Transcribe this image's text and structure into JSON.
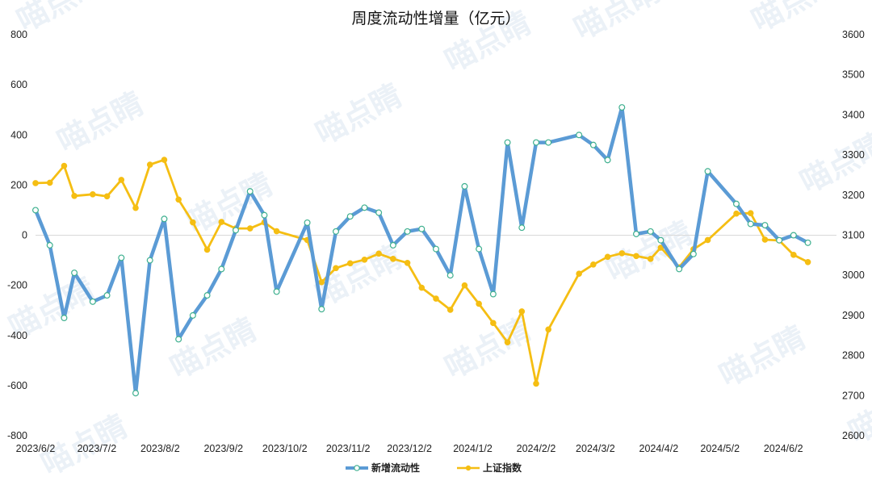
{
  "chart_data": {
    "type": "line",
    "title": "周度流动性增量（亿元）",
    "watermark": "喵点睛",
    "x_tick_labels": [
      "2023/6/2",
      "2023/7/2",
      "2023/8/2",
      "2023/9/2",
      "2023/10/2",
      "2023/11/2",
      "2023/12/2",
      "2024/1/2",
      "2024/2/2",
      "2024/3/2",
      "2024/4/2",
      "2024/5/2",
      "2024/6/2"
    ],
    "y_left": {
      "min": -800,
      "max": 800,
      "ticks": [
        "800",
        "600",
        "400",
        "200",
        "0",
        "-200",
        "-400",
        "-600",
        "-800"
      ]
    },
    "y_right": {
      "min": 2600,
      "max": 3600,
      "ticks": [
        "3600",
        "3500",
        "3400",
        "3300",
        "3200",
        "3100",
        "3000",
        "2900",
        "2800",
        "2700",
        "2600"
      ]
    },
    "x_range": [
      "2023-06-02",
      "2024-06-28"
    ],
    "grid": "horizontal zero line only",
    "legend_position": "bottom",
    "series": [
      {
        "name": "新增流动性",
        "axis": "left",
        "color": "#5b9bd5",
        "marker": "hollow-circle",
        "points": [
          [
            "2023-06-02",
            100
          ],
          [
            "2023-06-09",
            -40
          ],
          [
            "2023-06-16",
            -330
          ],
          [
            "2023-06-21",
            -150
          ],
          [
            "2023-06-30",
            -265
          ],
          [
            "2023-07-07",
            -240
          ],
          [
            "2023-07-14",
            -90
          ],
          [
            "2023-07-21",
            -630
          ],
          [
            "2023-07-28",
            -100
          ],
          [
            "2023-08-04",
            65
          ],
          [
            "2023-08-11",
            -415
          ],
          [
            "2023-08-18",
            -320
          ],
          [
            "2023-08-25",
            -240
          ],
          [
            "2023-09-01",
            -135
          ],
          [
            "2023-09-08",
            20
          ],
          [
            "2023-09-15",
            175
          ],
          [
            "2023-09-22",
            80
          ],
          [
            "2023-09-28",
            -225
          ],
          [
            "2023-10-13",
            50
          ],
          [
            "2023-10-20",
            -295
          ],
          [
            "2023-10-27",
            15
          ],
          [
            "2023-11-03",
            75
          ],
          [
            "2023-11-10",
            110
          ],
          [
            "2023-11-17",
            90
          ],
          [
            "2023-11-24",
            -40
          ],
          [
            "2023-12-01",
            15
          ],
          [
            "2023-12-08",
            25
          ],
          [
            "2023-12-15",
            -55
          ],
          [
            "2023-12-22",
            -160
          ],
          [
            "2023-12-29",
            195
          ],
          [
            "2024-01-05",
            -55
          ],
          [
            "2024-01-12",
            -235
          ],
          [
            "2024-01-19",
            370
          ],
          [
            "2024-01-26",
            30
          ],
          [
            "2024-02-02",
            370
          ],
          [
            "2024-02-08",
            370
          ],
          [
            "2024-02-23",
            400
          ],
          [
            "2024-03-01",
            360
          ],
          [
            "2024-03-08",
            300
          ],
          [
            "2024-03-15",
            510
          ],
          [
            "2024-03-22",
            5
          ],
          [
            "2024-03-29",
            15
          ],
          [
            "2024-04-03",
            -20
          ],
          [
            "2024-04-12",
            -135
          ],
          [
            "2024-04-19",
            -75
          ],
          [
            "2024-04-26",
            255
          ],
          [
            "2024-05-10",
            125
          ],
          [
            "2024-05-17",
            45
          ],
          [
            "2024-05-24",
            40
          ],
          [
            "2024-05-31",
            -20
          ],
          [
            "2024-06-07",
            0
          ],
          [
            "2024-06-14",
            -30
          ]
        ]
      },
      {
        "name": "上证指数",
        "axis": "right",
        "color": "#f5be13",
        "marker": "filled-circle",
        "points": [
          [
            "2023-06-02",
            3230
          ],
          [
            "2023-06-09",
            3231
          ],
          [
            "2023-06-16",
            3273
          ],
          [
            "2023-06-21",
            3198
          ],
          [
            "2023-06-30",
            3202
          ],
          [
            "2023-07-07",
            3197
          ],
          [
            "2023-07-14",
            3238
          ],
          [
            "2023-07-21",
            3168
          ],
          [
            "2023-07-28",
            3276
          ],
          [
            "2023-08-04",
            3288
          ],
          [
            "2023-08-11",
            3189
          ],
          [
            "2023-08-18",
            3132
          ],
          [
            "2023-08-25",
            3064
          ],
          [
            "2023-09-01",
            3133
          ],
          [
            "2023-09-08",
            3117
          ],
          [
            "2023-09-15",
            3117
          ],
          [
            "2023-09-22",
            3132
          ],
          [
            "2023-09-28",
            3110
          ],
          [
            "2023-10-13",
            3088
          ],
          [
            "2023-10-20",
            2983
          ],
          [
            "2023-10-27",
            3018
          ],
          [
            "2023-11-03",
            3030
          ],
          [
            "2023-11-10",
            3039
          ],
          [
            "2023-11-17",
            3054
          ],
          [
            "2023-11-24",
            3041
          ],
          [
            "2023-12-01",
            3031
          ],
          [
            "2023-12-08",
            2969
          ],
          [
            "2023-12-15",
            2942
          ],
          [
            "2023-12-22",
            2914
          ],
          [
            "2023-12-29",
            2975
          ],
          [
            "2024-01-05",
            2929
          ],
          [
            "2024-01-12",
            2881
          ],
          [
            "2024-01-19",
            2833
          ],
          [
            "2024-01-26",
            2910
          ],
          [
            "2024-02-02",
            2730
          ],
          [
            "2024-02-08",
            2865
          ],
          [
            "2024-02-23",
            3004
          ],
          [
            "2024-03-01",
            3027
          ],
          [
            "2024-03-08",
            3046
          ],
          [
            "2024-03-15",
            3055
          ],
          [
            "2024-03-22",
            3048
          ],
          [
            "2024-03-29",
            3041
          ],
          [
            "2024-04-03",
            3069
          ],
          [
            "2024-04-12",
            3020
          ],
          [
            "2024-04-19",
            3065
          ],
          [
            "2024-04-26",
            3088
          ],
          [
            "2024-05-10",
            3154
          ],
          [
            "2024-05-17",
            3155
          ],
          [
            "2024-05-24",
            3089
          ],
          [
            "2024-05-31",
            3087
          ],
          [
            "2024-06-07",
            3051
          ],
          [
            "2024-06-14",
            3033
          ]
        ]
      }
    ]
  }
}
